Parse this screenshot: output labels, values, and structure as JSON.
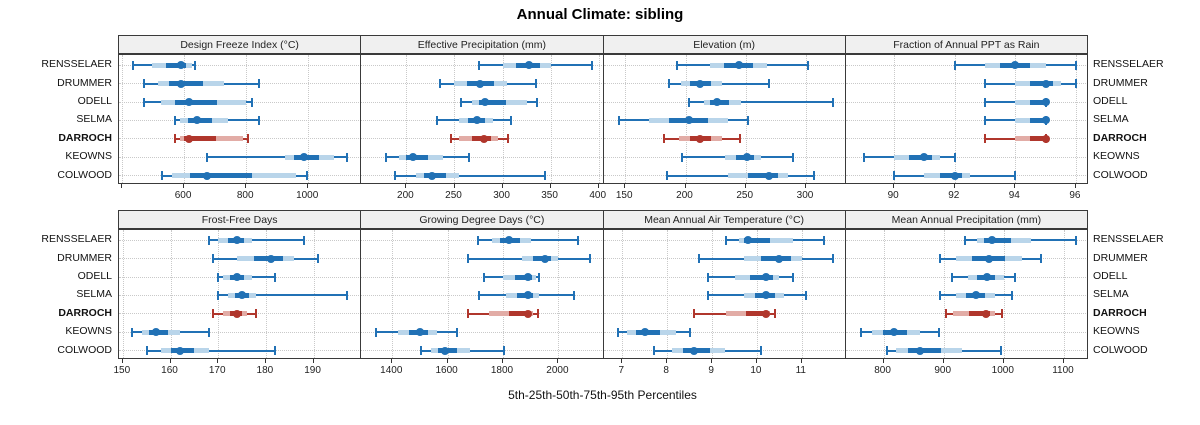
{
  "chart_data": {
    "type": "multi-panel-percentile-dotplot",
    "title": "Annual Climate: sibling",
    "xlabel": "5th-25th-50th-75th-95th Percentiles",
    "percentiles_shown": [
      5,
      25,
      50,
      75,
      95
    ],
    "sites": [
      "RENSSELAER",
      "DRUMMER",
      "ODELL",
      "SELMA",
      "DARROCH",
      "KEOWNS",
      "COLWOOD"
    ],
    "highlight_site": "DARROCH",
    "legend_position": "none",
    "grid": "dotted",
    "colors": {
      "series_blue": "#2171b5",
      "series_blue_band": "#b9d5ea",
      "highlight_red": "#b0362c",
      "highlight_red_band": "#e2aca6",
      "header_bg": "#f0f0f0",
      "panel_border": "#3a3a3a",
      "gridline": "#c9c9c9"
    },
    "panels": [
      {
        "title": "Design Freeze Index (°C)",
        "grid_row": 0,
        "grid_col": 0,
        "axis": {
          "min": 390,
          "max": 1171,
          "ticks": [
            {
              "v": 400,
              "label": ""
            },
            {
              "v": 600,
              "label": "600"
            },
            {
              "v": 800,
              "label": "800"
            },
            {
              "v": 1000,
              "label": "1000"
            }
          ]
        },
        "rows": [
          [
            435,
            495,
            590,
            625,
            635
          ],
          [
            470,
            515,
            590,
            730,
            840
          ],
          [
            470,
            525,
            615,
            800,
            820
          ],
          [
            570,
            585,
            640,
            740,
            840
          ],
          [
            570,
            585,
            615,
            790,
            805
          ],
          [
            675,
            925,
            985,
            1085,
            1125
          ],
          [
            530,
            560,
            675,
            960,
            995
          ]
        ]
      },
      {
        "title": "Effective Precipitation (mm)",
        "grid_row": 0,
        "grid_col": 1,
        "axis": {
          "min": 153,
          "max": 405,
          "ticks": [
            {
              "v": 200,
              "label": "200"
            },
            {
              "v": 250,
              "label": "250"
            },
            {
              "v": 300,
              "label": "300"
            },
            {
              "v": 350,
              "label": "350"
            },
            {
              "v": 400,
              "label": "400"
            }
          ]
        },
        "rows": [
          [
            275,
            300,
            327,
            350,
            393
          ],
          [
            235,
            250,
            277,
            305,
            335
          ],
          [
            257,
            268,
            282,
            325,
            336
          ],
          [
            232,
            255,
            273,
            290,
            309
          ],
          [
            246,
            255,
            281,
            295,
            306
          ],
          [
            179,
            192,
            207,
            238,
            265
          ],
          [
            188,
            210,
            227,
            255,
            344
          ]
        ]
      },
      {
        "title": "Elevation (m)",
        "grid_row": 0,
        "grid_col": 2,
        "axis": {
          "min": 132,
          "max": 333,
          "ticks": [
            {
              "v": 150,
              "label": "150"
            },
            {
              "v": 200,
              "label": "200"
            },
            {
              "v": 250,
              "label": "250"
            },
            {
              "v": 300,
              "label": "300"
            }
          ]
        },
        "rows": [
          [
            193,
            220,
            244,
            268,
            302
          ],
          [
            186,
            196,
            212,
            230,
            269
          ],
          [
            203,
            215,
            226,
            246,
            322
          ],
          [
            145,
            170,
            203,
            235,
            252
          ],
          [
            182,
            195,
            212,
            230,
            245
          ],
          [
            197,
            233,
            251,
            263,
            289
          ],
          [
            185,
            235,
            269,
            285,
            307
          ]
        ]
      },
      {
        "title": "Fraction of Annual PPT as Rain",
        "grid_row": 0,
        "grid_col": 3,
        "axis": {
          "min": 88.4,
          "max": 96.4,
          "ticks": [
            {
              "v": 90,
              "label": "90"
            },
            {
              "v": 92,
              "label": "92"
            },
            {
              "v": 94,
              "label": "94"
            },
            {
              "v": 96,
              "label": "96"
            }
          ]
        },
        "rows": [
          [
            92,
            93,
            94,
            95,
            96
          ],
          [
            93,
            94,
            95,
            95.5,
            96
          ],
          [
            93,
            94,
            95,
            95,
            95
          ],
          [
            93,
            94,
            95,
            95,
            95
          ],
          [
            93,
            94,
            95,
            95,
            95
          ],
          [
            89,
            90,
            91,
            91.5,
            92
          ],
          [
            90,
            91,
            92,
            92.5,
            94
          ]
        ]
      },
      {
        "title": "Frost-Free Days",
        "grid_row": 1,
        "grid_col": 0,
        "axis": {
          "min": 149.2,
          "max": 200,
          "ticks": [
            {
              "v": 150,
              "label": "150"
            },
            {
              "v": 160,
              "label": "160"
            },
            {
              "v": 170,
              "label": "170"
            },
            {
              "v": 180,
              "label": "180"
            },
            {
              "v": 190,
              "label": "190"
            }
          ]
        },
        "rows": [
          [
            168,
            170,
            174,
            177,
            188
          ],
          [
            169,
            174,
            181,
            186,
            191
          ],
          [
            170,
            171,
            174,
            177,
            182
          ],
          [
            170,
            172,
            175,
            178,
            197
          ],
          [
            169,
            171,
            174,
            176,
            178
          ],
          [
            152,
            154,
            157,
            162,
            168
          ],
          [
            155,
            158,
            162,
            168,
            182
          ]
        ]
      },
      {
        "title": "Growing Degree Days (°C)",
        "grid_row": 1,
        "grid_col": 1,
        "axis": {
          "min": 1288,
          "max": 2163,
          "ticks": [
            {
              "v": 1400,
              "label": "1400"
            },
            {
              "v": 1600,
              "label": "1600"
            },
            {
              "v": 1800,
              "label": "1800"
            },
            {
              "v": 2000,
              "label": "2000"
            }
          ]
        },
        "rows": [
          [
            1710,
            1760,
            1820,
            1900,
            2070
          ],
          [
            1675,
            1870,
            1950,
            2000,
            2115
          ],
          [
            1730,
            1800,
            1890,
            1920,
            1930
          ],
          [
            1715,
            1810,
            1890,
            1930,
            2055
          ],
          [
            1672,
            1750,
            1890,
            1910,
            1925
          ],
          [
            1340,
            1420,
            1500,
            1560,
            1635
          ],
          [
            1505,
            1540,
            1590,
            1680,
            1805
          ]
        ]
      },
      {
        "title": "Mean Annual Air Temperature (°C)",
        "grid_row": 1,
        "grid_col": 2,
        "axis": {
          "min": 6.58,
          "max": 11.98,
          "ticks": [
            {
              "v": 7,
              "label": "7"
            },
            {
              "v": 8,
              "label": "8"
            },
            {
              "v": 9,
              "label": "9"
            },
            {
              "v": 10,
              "label": "10"
            },
            {
              "v": 11,
              "label": "11"
            }
          ]
        },
        "rows": [
          [
            9.3,
            9.6,
            9.8,
            10.8,
            11.5
          ],
          [
            8.7,
            9.7,
            10.5,
            11.0,
            11.7
          ],
          [
            8.9,
            9.5,
            10.2,
            10.5,
            10.8
          ],
          [
            8.9,
            9.7,
            10.2,
            10.6,
            11.1
          ],
          [
            8.6,
            9.3,
            10.2,
            10.3,
            10.4
          ],
          [
            6.9,
            7.1,
            7.5,
            8.2,
            8.5
          ],
          [
            7.7,
            8.1,
            8.6,
            9.3,
            10.1
          ]
        ]
      },
      {
        "title": "Mean Annual Precipitation (mm)",
        "grid_row": 1,
        "grid_col": 3,
        "axis": {
          "min": 737,
          "max": 1140,
          "ticks": [
            {
              "v": 800,
              "label": "800"
            },
            {
              "v": 900,
              "label": "900"
            },
            {
              "v": 1000,
              "label": "1000"
            },
            {
              "v": 1100,
              "label": "1100"
            }
          ]
        },
        "rows": [
          [
            935,
            955,
            980,
            1045,
            1120
          ],
          [
            893,
            920,
            975,
            1030,
            1062
          ],
          [
            913,
            940,
            972,
            1000,
            1018
          ],
          [
            893,
            920,
            953,
            985,
            1013
          ],
          [
            903,
            915,
            970,
            985,
            997
          ],
          [
            762,
            780,
            817,
            860,
            892
          ],
          [
            806,
            820,
            860,
            930,
            995
          ]
        ]
      }
    ]
  }
}
